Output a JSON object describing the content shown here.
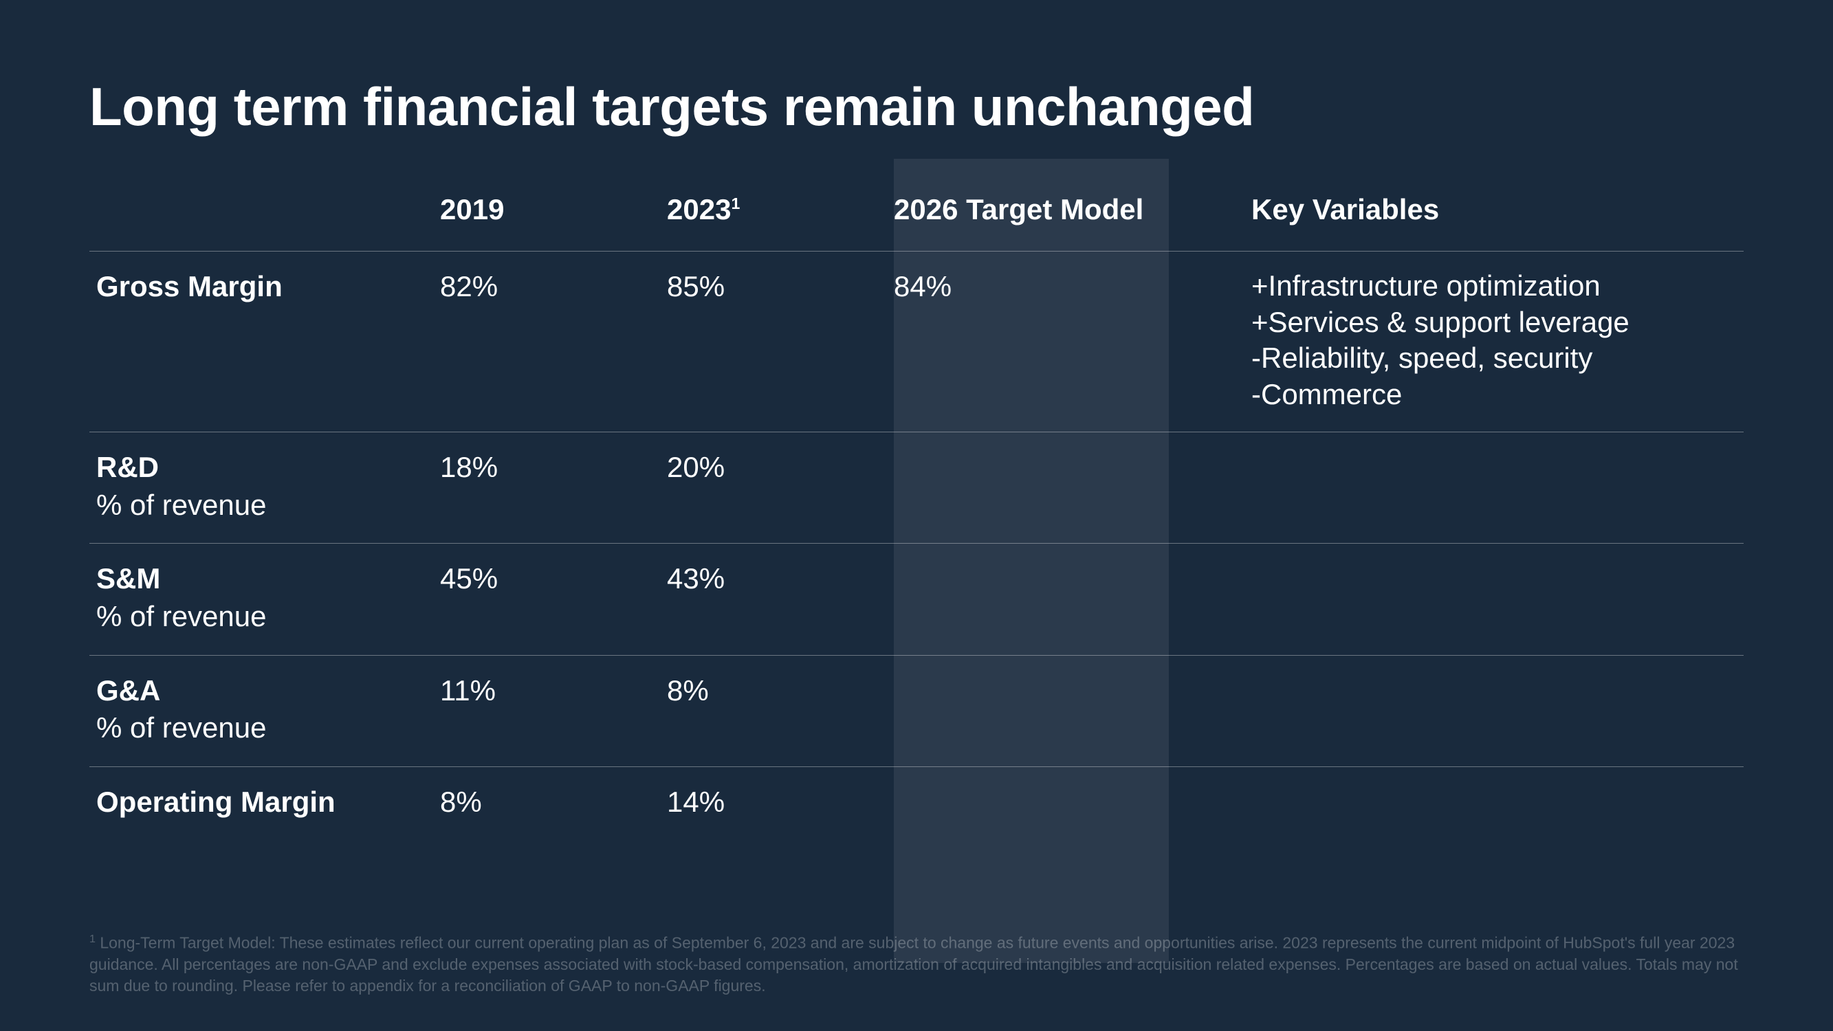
{
  "styling": {
    "background_color": "#192a3d",
    "text_color": "#ffffff",
    "divider_color": "rgba(255,255,255,0.35)",
    "highlight_col_color": "rgba(255,255,255,0.08)",
    "footnote_color": "rgba(255,255,255,0.26)",
    "title_fontsize": 78,
    "header_fontsize": 42,
    "cell_fontsize": 42,
    "footnote_fontsize": 23
  },
  "title": "Long term financial targets remain unchanged",
  "table": {
    "headers": {
      "col_2019": "2019",
      "col_2023_base": "2023",
      "col_2023_sup": "1",
      "col_target": "2026 Target Model",
      "col_vars": "Key Variables"
    },
    "rows": [
      {
        "label": "Gross Margin",
        "sublabel": "",
        "v2019": "82%",
        "v2023": "85%",
        "vtarget": "84%",
        "vars": "+Infrastructure optimization\n+Services & support leverage\n-Reliability, speed, security\n-Commerce"
      },
      {
        "label": "R&D",
        "sublabel": "% of revenue",
        "v2019": "18%",
        "v2023": "20%",
        "vtarget": "",
        "vars": ""
      },
      {
        "label": "S&M",
        "sublabel": "% of revenue",
        "v2019": "45%",
        "v2023": "43%",
        "vtarget": "",
        "vars": ""
      },
      {
        "label": "G&A",
        "sublabel": "% of revenue",
        "v2019": "11%",
        "v2023": "8%",
        "vtarget": "",
        "vars": ""
      },
      {
        "label": "Operating Margin",
        "sublabel": "",
        "v2019": "8%",
        "v2023": "14%",
        "vtarget": "",
        "vars": ""
      }
    ]
  },
  "footnote_sup": "1",
  "footnote": " Long-Term Target Model: These estimates reflect our current operating plan as of September 6, 2023 and are subject to change as future events and opportunities arise. 2023 represents the current midpoint of HubSpot's full year 2023 guidance. All percentages are non-GAAP and exclude expenses associated with stock-based compensation, amortization of acquired intangibles and acquisition related expenses. Percentages are based on actual values. Totals may not sum due to rounding. Please refer to appendix for a reconciliation of GAAP to non-GAAP figures."
}
